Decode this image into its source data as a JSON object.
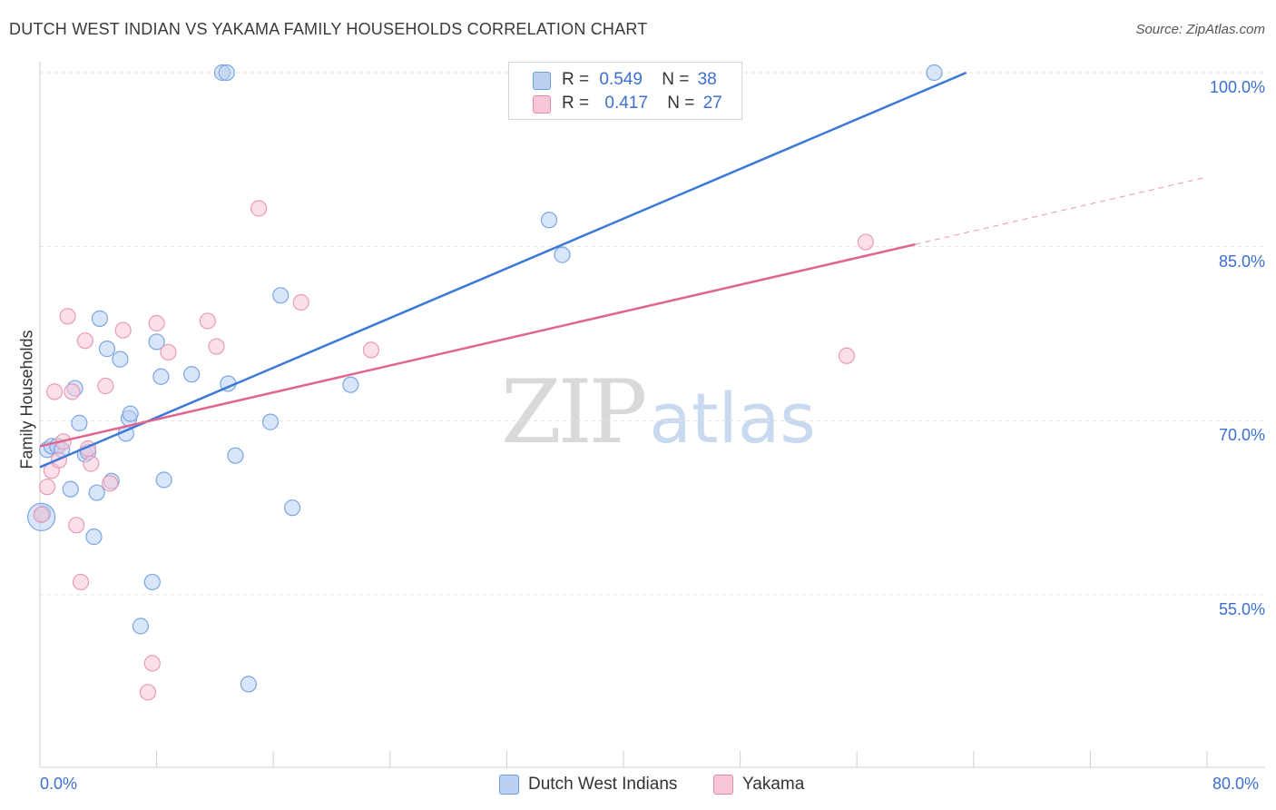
{
  "title": "DUTCH WEST INDIAN VS YAKAMA FAMILY HOUSEHOLDS CORRELATION CHART",
  "source": "Source: ZipAtlas.com",
  "watermark": {
    "zip": "ZIP",
    "atlas": "atlas"
  },
  "legend": {
    "r_label": "R =",
    "n_label": "N =",
    "series": [
      {
        "name": "Dutch West Indians",
        "r": "0.549",
        "n": "38",
        "color": "#6b9de0",
        "fill": "#b9d0f2"
      },
      {
        "name": "Yakama",
        "r": "0.417",
        "n": "27",
        "color": "#e58aaa",
        "fill": "#f8c7d6"
      }
    ]
  },
  "chart_data": {
    "type": "scatter",
    "title": "DUTCH WEST INDIAN VS YAKAMA FAMILY HOUSEHOLDS CORRELATION CHART",
    "xlabel": "",
    "ylabel": "Family Households",
    "xlim": [
      0,
      80
    ],
    "ylim": [
      40,
      102
    ],
    "x_tick_labels": [
      "0.0%",
      "80.0%"
    ],
    "y_ticks": [
      55,
      70,
      85,
      100
    ],
    "y_tick_labels": [
      "55.0%",
      "70.0%",
      "85.0%",
      "100.0%"
    ],
    "grid": true,
    "series": [
      {
        "name": "Dutch West Indians",
        "color": "#3b78d8",
        "fill": "#b9d0f2",
        "points": [
          [
            0.2,
            62.0
          ],
          [
            0.5,
            67.5
          ],
          [
            0.8,
            67.8
          ],
          [
            1.2,
            67.8
          ],
          [
            1.5,
            67.5
          ],
          [
            2.1,
            64.1
          ],
          [
            2.4,
            72.8
          ],
          [
            2.7,
            69.8
          ],
          [
            3.1,
            67.1
          ],
          [
            3.3,
            67.3
          ],
          [
            3.7,
            60.0
          ],
          [
            3.9,
            63.8
          ],
          [
            4.1,
            78.8
          ],
          [
            4.6,
            76.2
          ],
          [
            4.9,
            64.8
          ],
          [
            5.5,
            75.3
          ],
          [
            5.9,
            68.9
          ],
          [
            6.1,
            70.2
          ],
          [
            6.2,
            70.6
          ],
          [
            6.9,
            52.3
          ],
          [
            7.7,
            56.1
          ],
          [
            8.0,
            76.8
          ],
          [
            8.3,
            73.8
          ],
          [
            8.5,
            64.9
          ],
          [
            10.4,
            74.0
          ],
          [
            12.5,
            100.0
          ],
          [
            12.8,
            100.0
          ],
          [
            12.9,
            73.2
          ],
          [
            13.4,
            67.0
          ],
          [
            14.3,
            47.3
          ],
          [
            15.8,
            69.9
          ],
          [
            16.5,
            80.8
          ],
          [
            17.3,
            62.5
          ],
          [
            21.3,
            73.1
          ],
          [
            34.9,
            87.3
          ],
          [
            35.8,
            84.3
          ],
          [
            61.3,
            100.0
          ],
          [
            0.1,
            61.7
          ]
        ],
        "trendline": {
          "x": [
            0,
            63.5
          ],
          "y": [
            66.0,
            100.0
          ]
        }
      },
      {
        "name": "Yakama",
        "color": "#e06690",
        "fill": "#f8c7d6",
        "points": [
          [
            0.1,
            61.9
          ],
          [
            0.5,
            64.3
          ],
          [
            0.8,
            65.7
          ],
          [
            1.0,
            72.5
          ],
          [
            1.3,
            66.6
          ],
          [
            1.6,
            68.2
          ],
          [
            1.9,
            79.0
          ],
          [
            2.2,
            72.5
          ],
          [
            2.5,
            61.0
          ],
          [
            2.8,
            56.1
          ],
          [
            3.1,
            76.9
          ],
          [
            3.3,
            67.6
          ],
          [
            3.5,
            66.3
          ],
          [
            4.5,
            73.0
          ],
          [
            4.8,
            64.6
          ],
          [
            5.7,
            77.8
          ],
          [
            7.4,
            46.6
          ],
          [
            7.7,
            49.1
          ],
          [
            8.0,
            78.4
          ],
          [
            8.8,
            75.9
          ],
          [
            11.5,
            78.6
          ],
          [
            12.1,
            76.4
          ],
          [
            15.0,
            88.3
          ],
          [
            17.9,
            80.2
          ],
          [
            22.7,
            76.1
          ],
          [
            55.3,
            75.6
          ],
          [
            56.6,
            85.4
          ]
        ],
        "trendline": {
          "x": [
            0,
            60.0
          ],
          "y": [
            67.8,
            85.2
          ]
        },
        "trendline_extension": {
          "x": [
            60.0,
            80.0
          ],
          "y": [
            85.2,
            91.0
          ]
        }
      }
    ]
  }
}
